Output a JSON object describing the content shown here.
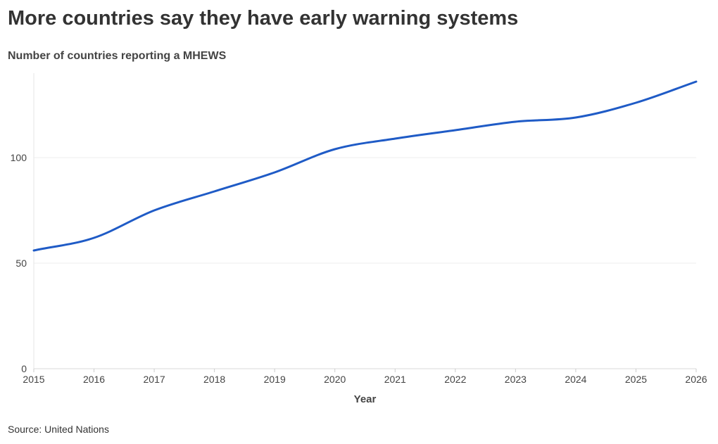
{
  "title": "More countries say they have early warning systems",
  "subtitle": "Number of countries reporting a MHEWS",
  "source": "Source: United Nations",
  "chart_data": {
    "type": "line",
    "xlabel": "Year",
    "ylabel": "",
    "xlim": [
      2015,
      2026
    ],
    "ylim": [
      0,
      140
    ],
    "x_ticks": [
      2015,
      2016,
      2017,
      2018,
      2019,
      2020,
      2021,
      2022,
      2023,
      2024,
      2025,
      2026
    ],
    "y_ticks": [
      0,
      50,
      100
    ],
    "grid": true,
    "legend": "none",
    "series": [
      {
        "color": "#1f5bc6",
        "x": [
          2015,
          2016,
          2017,
          2018,
          2019,
          2020,
          2021,
          2022,
          2023,
          2024,
          2025,
          2026
        ],
        "y": [
          56,
          62,
          75,
          84,
          93,
          104,
          109,
          113,
          117,
          119,
          126,
          136
        ]
      }
    ]
  }
}
